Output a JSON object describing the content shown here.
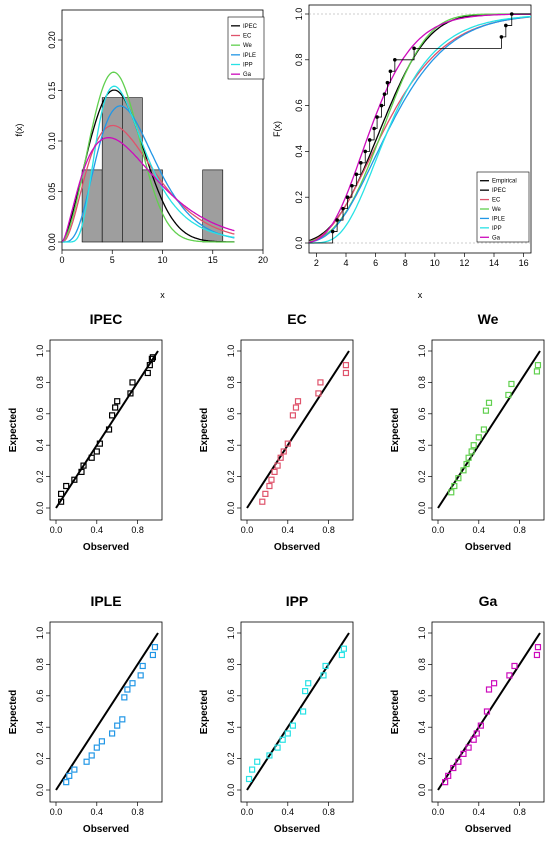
{
  "colors": {
    "IPEC": "#000000",
    "EC": "#df536b",
    "We": "#61d04f",
    "IPLE": "#2297e6",
    "IPP": "#28e2e5",
    "Ga": "#cd0bbc",
    "Empirical": "#000000",
    "bar": "#9e9e9e"
  },
  "chart_data": [
    {
      "type": "histogram-density",
      "title": "",
      "xlabel": "x",
      "ylabel": "f(x)",
      "xlim": [
        0,
        20
      ],
      "ylim": [
        0,
        0.2
      ],
      "xticks": [
        "0",
        "5",
        "10",
        "15",
        "20"
      ],
      "yticks": [
        "0.00",
        "0.05",
        "0.10",
        "0.15",
        "0.20"
      ],
      "legend_position": "top-right",
      "bars": [
        {
          "x0": 2,
          "x1": 4,
          "value": 0.0714
        },
        {
          "x0": 4,
          "x1": 6,
          "value": 0.1429
        },
        {
          "x0": 6,
          "x1": 8,
          "value": 0.1429
        },
        {
          "x0": 8,
          "x1": 10,
          "value": 0.0714
        },
        {
          "x0": 14,
          "x1": 16,
          "value": 0.0714
        }
      ],
      "curves": [
        {
          "name": "IPEC",
          "dist": "weibull",
          "shape": 2.4,
          "scale": 6.5
        },
        {
          "name": "EC",
          "dist": "gamma",
          "shape": 3.3,
          "scale": 2.2
        },
        {
          "name": "We",
          "dist": "weibull",
          "shape": 2.6,
          "scale": 6.2
        },
        {
          "name": "IPLE",
          "dist": "gamma",
          "shape": 5.0,
          "scale": 1.45
        },
        {
          "name": "IPP",
          "dist": "lognormal",
          "mu": 1.85,
          "sigma": 0.45
        },
        {
          "name": "Ga",
          "dist": "gamma",
          "shape": 2.6,
          "scale": 2.9
        }
      ]
    },
    {
      "type": "line",
      "title": "",
      "xlabel": "x",
      "ylabel": "F(x)",
      "xlim": [
        1.5,
        16.5
      ],
      "ylim": [
        0,
        1
      ],
      "xticks": [
        "2",
        "4",
        "6",
        "8",
        "10",
        "12",
        "14",
        "16"
      ],
      "yticks": [
        "0.0",
        "0.2",
        "0.4",
        "0.6",
        "0.8",
        "1.0"
      ],
      "legend_position": "bottom-right",
      "empirical": [
        3.1,
        3.4,
        3.8,
        4.1,
        4.4,
        4.7,
        5.0,
        5.3,
        5.6,
        5.9,
        6.1,
        6.4,
        6.6,
        6.8,
        7.0,
        7.3,
        8.6,
        14.5,
        14.8,
        15.2
      ],
      "series": [
        {
          "name": "Empirical"
        },
        {
          "name": "IPEC",
          "dist": "weibull",
          "shape": 2.9,
          "scale": 7.2
        },
        {
          "name": "EC",
          "dist": "gamma",
          "shape": 4.6,
          "scale": 1.55
        },
        {
          "name": "We",
          "dist": "weibull",
          "shape": 3.2,
          "scale": 7.3
        },
        {
          "name": "IPLE",
          "dist": "gamma",
          "shape": 5.2,
          "scale": 1.42
        },
        {
          "name": "IPP",
          "dist": "lognormal",
          "mu": 1.93,
          "sigma": 0.38
        },
        {
          "name": "Ga",
          "dist": "gamma",
          "shape": 6.5,
          "scale": 0.92
        }
      ]
    },
    {
      "type": "scatter",
      "title": "IPEC",
      "xlabel": "Observed",
      "ylabel": "Expected",
      "xlim": [
        0,
        1
      ],
      "ylim": [
        0,
        1
      ],
      "xticks": [
        "0.0",
        "0.4",
        "0.8"
      ],
      "yticks": [
        "0.0",
        "0.2",
        "0.4",
        "0.6",
        "0.8",
        "1.0"
      ],
      "x": [
        0.05,
        0.05,
        0.1,
        0.18,
        0.25,
        0.27,
        0.35,
        0.4,
        0.43,
        0.52,
        0.55,
        0.58,
        0.6,
        0.73,
        0.75,
        0.9,
        0.92,
        0.94,
        0.95
      ],
      "y": [
        0.04,
        0.09,
        0.14,
        0.18,
        0.23,
        0.27,
        0.32,
        0.36,
        0.41,
        0.5,
        0.59,
        0.64,
        0.68,
        0.73,
        0.8,
        0.86,
        0.91,
        0.95,
        0.96
      ]
    },
    {
      "type": "scatter",
      "title": "EC",
      "xlabel": "Observed",
      "ylabel": "Expected",
      "xlim": [
        0,
        1
      ],
      "ylim": [
        0,
        1
      ],
      "xticks": [
        "0.0",
        "0.4",
        "0.8"
      ],
      "yticks": [
        "0.0",
        "0.2",
        "0.4",
        "0.6",
        "0.8",
        "1.0"
      ],
      "x": [
        0.15,
        0.18,
        0.22,
        0.24,
        0.27,
        0.3,
        0.33,
        0.36,
        0.4,
        0.45,
        0.48,
        0.5,
        0.7,
        0.72,
        0.97,
        0.97
      ],
      "y": [
        0.04,
        0.09,
        0.14,
        0.18,
        0.23,
        0.27,
        0.32,
        0.36,
        0.41,
        0.59,
        0.64,
        0.68,
        0.73,
        0.8,
        0.86,
        0.91
      ]
    },
    {
      "type": "scatter",
      "title": "We",
      "xlabel": "Observed",
      "ylabel": "Expected",
      "xlim": [
        0,
        1
      ],
      "ylim": [
        0,
        1
      ],
      "xticks": [
        "0.0",
        "0.4",
        "0.8"
      ],
      "yticks": [
        "0.0",
        "0.2",
        "0.4",
        "0.6",
        "0.8",
        "1.0"
      ],
      "x": [
        0.13,
        0.16,
        0.2,
        0.25,
        0.28,
        0.3,
        0.33,
        0.35,
        0.4,
        0.45,
        0.47,
        0.5,
        0.69,
        0.72,
        0.97,
        0.98
      ],
      "y": [
        0.1,
        0.14,
        0.19,
        0.24,
        0.28,
        0.32,
        0.36,
        0.4,
        0.45,
        0.5,
        0.62,
        0.67,
        0.72,
        0.79,
        0.87,
        0.91
      ]
    },
    {
      "type": "scatter",
      "title": "IPLE",
      "xlabel": "Observed",
      "ylabel": "Expected",
      "xlim": [
        0,
        1
      ],
      "ylim": [
        0,
        1
      ],
      "xticks": [
        "0.0",
        "0.4",
        "0.8"
      ],
      "yticks": [
        "0.0",
        "0.2",
        "0.4",
        "0.6",
        "0.8",
        "1.0"
      ],
      "x": [
        0.1,
        0.13,
        0.18,
        0.3,
        0.35,
        0.4,
        0.45,
        0.55,
        0.6,
        0.65,
        0.67,
        0.7,
        0.75,
        0.83,
        0.85,
        0.95,
        0.97
      ],
      "y": [
        0.05,
        0.09,
        0.13,
        0.18,
        0.22,
        0.27,
        0.31,
        0.36,
        0.41,
        0.45,
        0.59,
        0.64,
        0.68,
        0.73,
        0.79,
        0.86,
        0.91
      ]
    },
    {
      "type": "scatter",
      "title": "IPP",
      "xlabel": "Observed",
      "ylabel": "Expected",
      "xlim": [
        0,
        1
      ],
      "ylim": [
        0,
        1
      ],
      "xticks": [
        "0.0",
        "0.4",
        "0.8"
      ],
      "yticks": [
        "0.0",
        "0.2",
        "0.4",
        "0.6",
        "0.8",
        "1.0"
      ],
      "x": [
        0.02,
        0.05,
        0.1,
        0.22,
        0.3,
        0.35,
        0.4,
        0.45,
        0.55,
        0.57,
        0.6,
        0.75,
        0.77,
        0.93,
        0.95
      ],
      "y": [
        0.07,
        0.13,
        0.18,
        0.22,
        0.27,
        0.32,
        0.36,
        0.41,
        0.5,
        0.63,
        0.68,
        0.73,
        0.79,
        0.86,
        0.9
      ]
    },
    {
      "type": "scatter",
      "title": "Ga",
      "xlabel": "Observed",
      "ylabel": "Expected",
      "xlim": [
        0,
        1
      ],
      "ylim": [
        0,
        1
      ],
      "xticks": [
        "0.0",
        "0.4",
        "0.8"
      ],
      "yticks": [
        "0.0",
        "0.2",
        "0.4",
        "0.6",
        "0.8",
        "1.0"
      ],
      "x": [
        0.07,
        0.1,
        0.15,
        0.2,
        0.25,
        0.3,
        0.35,
        0.38,
        0.42,
        0.48,
        0.5,
        0.55,
        0.7,
        0.75,
        0.97,
        0.98
      ],
      "y": [
        0.05,
        0.09,
        0.14,
        0.18,
        0.23,
        0.27,
        0.32,
        0.36,
        0.41,
        0.5,
        0.64,
        0.68,
        0.73,
        0.79,
        0.86,
        0.91
      ]
    }
  ]
}
